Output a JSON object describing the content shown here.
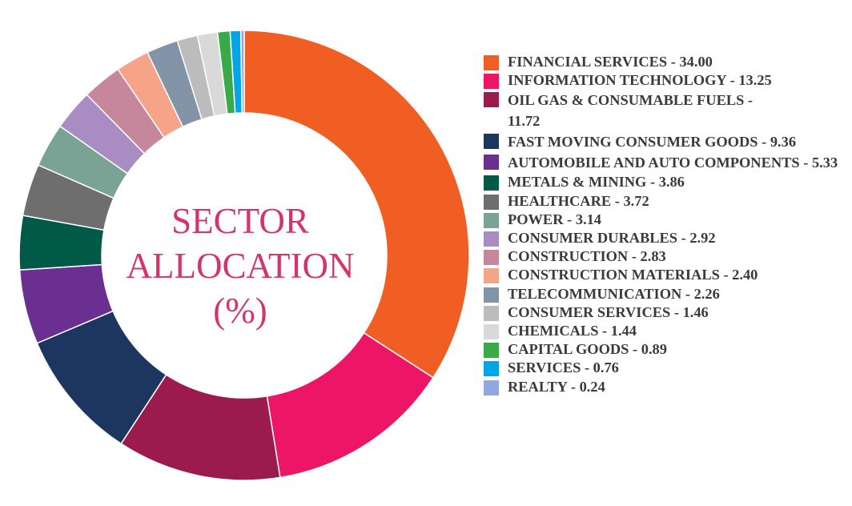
{
  "chart_data": {
    "type": "pie",
    "variant": "donut",
    "title_lines": [
      "SECTOR",
      "ALLOCATION",
      "(%)"
    ],
    "title_color": "#d6336c",
    "legend_position": "right",
    "slices": [
      {
        "label": "FINANCIAL SERVICES",
        "value_text": "34.00",
        "value": 34.0,
        "color": "#f05e23"
      },
      {
        "label": "INFORMATION TECHNOLOGY",
        "value_text": "13.25",
        "value": 13.25,
        "color": "#ed1566"
      },
      {
        "label": "OIL GAS & CONSUMABLE FUELS",
        "value_text": "11.72",
        "value": 11.72,
        "color": "#9b1b4f"
      },
      {
        "label": "FAST MOVING CONSUMER GOODS",
        "value_text": "9.36",
        "value": 9.36,
        "color": "#1c3660"
      },
      {
        "label": "AUTOMOBILE AND AUTO COMPONENTS",
        "value_text": "5.33",
        "value": 5.33,
        "color": "#6b2f91"
      },
      {
        "label": "METALS & MINING",
        "value_text": "3.86",
        "value": 3.86,
        "color": "#005a47"
      },
      {
        "label": "HEALTHCARE",
        "value_text": "3.72",
        "value": 3.72,
        "color": "#6e6e6e"
      },
      {
        "label": "POWER",
        "value_text": "3.14",
        "value": 3.14,
        "color": "#7aa396"
      },
      {
        "label": "CONSUMER DURABLES",
        "value_text": "2.92",
        "value": 2.92,
        "color": "#a98dc2"
      },
      {
        "label": "CONSTRUCTION",
        "value_text": "2.83",
        "value": 2.83,
        "color": "#c6879d"
      },
      {
        "label": "CONSTRUCTION MATERIALS",
        "value_text": "2.40",
        "value": 2.4,
        "color": "#f6a488"
      },
      {
        "label": "TELECOMMUNICATION",
        "value_text": "2.26",
        "value": 2.26,
        "color": "#8393a8"
      },
      {
        "label": "CONSUMER SERVICES",
        "value_text": "1.46",
        "value": 1.46,
        "color": "#bcbcbc"
      },
      {
        "label": "CHEMICALS",
        "value_text": "1.44",
        "value": 1.44,
        "color": "#d9d9d9"
      },
      {
        "label": "CAPITAL GOODS",
        "value_text": "0.89",
        "value": 0.89,
        "color": "#3aaa49"
      },
      {
        "label": "SERVICES",
        "value_text": "0.76",
        "value": 0.76,
        "color": "#00a6e6"
      },
      {
        "label": "REALTY",
        "value_text": "0.24",
        "value": 0.24,
        "color": "#8fa8dd"
      }
    ]
  }
}
